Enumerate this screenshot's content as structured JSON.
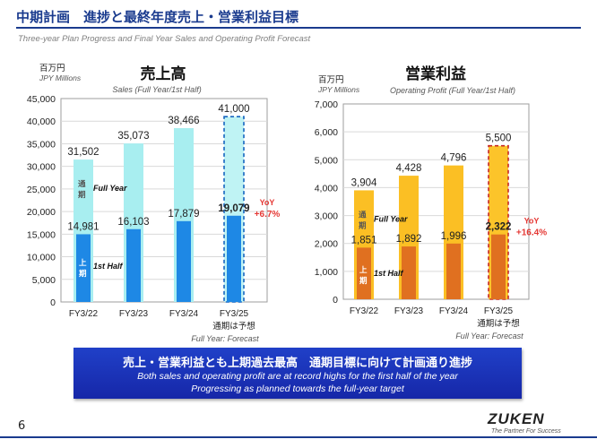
{
  "header": {
    "title": "中期計画　進捗と最終年度売上・営業利益目標",
    "subtitle": "Three-year Plan Progress and Final Year Sales and Operating Profit Forecast"
  },
  "chart_data": [
    {
      "type": "bar",
      "title": "売上高",
      "subtitle": "Sales (Full Year/1st Half)",
      "unit_label": "百万円",
      "unit_label_en": "JPY Millions",
      "categories": [
        "FY3/22",
        "FY3/23",
        "FY3/24",
        "FY3/25"
      ],
      "category_note": "通期は予想",
      "category_note_en": "Full Year: Forecast",
      "ylim": [
        0,
        45000
      ],
      "yticks": [
        "0",
        "5,000",
        "10,000",
        "15,000",
        "20,000",
        "25,000",
        "30,000",
        "35,000",
        "40,000",
        "45,000"
      ],
      "series": [
        {
          "name": "Full Year",
          "name_jp": "通期",
          "values": [
            31502,
            35073,
            38466,
            41000
          ],
          "labels": [
            "31,502",
            "35,073",
            "38,466",
            "41,000"
          ]
        },
        {
          "name": "1st Half",
          "name_jp": "上期",
          "values": [
            14981,
            16103,
            17879,
            19079
          ],
          "labels": [
            "14,981",
            "16,103",
            "17,879",
            "19,079"
          ]
        }
      ],
      "forecast_index": 3,
      "yoy_label": "YoY",
      "yoy_value": "+6.7%",
      "colors": {
        "full": "#a8eef0",
        "half": "#1e88e5",
        "forecast_outline": "#1565c0"
      }
    },
    {
      "type": "bar",
      "title": "営業利益",
      "subtitle": "Operating Profit (Full Year/1st Half)",
      "unit_label": "百万円",
      "unit_label_en": "JPY Millions",
      "categories": [
        "FY3/22",
        "FY3/23",
        "FY3/24",
        "FY3/25"
      ],
      "category_note": "通期は予想",
      "category_note_en": "Full Year: Forecast",
      "ylim": [
        0,
        7000
      ],
      "yticks": [
        "0",
        "1,000",
        "2,000",
        "3,000",
        "4,000",
        "5,000",
        "6,000",
        "7,000"
      ],
      "series": [
        {
          "name": "Full Year",
          "name_jp": "通期",
          "values": [
            3904,
            4428,
            4796,
            5500
          ],
          "labels": [
            "3,904",
            "4,428",
            "4,796",
            "5,500"
          ]
        },
        {
          "name": "1st Half",
          "name_jp": "上期",
          "values": [
            1851,
            1892,
            1996,
            2322
          ],
          "labels": [
            "1,851",
            "1,892",
            "1,996",
            "2,322"
          ]
        }
      ],
      "forecast_index": 3,
      "yoy_label": "YoY",
      "yoy_value": "+16.4%",
      "colors": {
        "full": "#fbbf24",
        "half": "#e07020",
        "forecast_outline": "#c62828"
      }
    }
  ],
  "banner": {
    "main": "売上・営業利益とも上期過去最高　通期目標に向けて計画通り進捗",
    "sub1": "Both sales and operating profit are at record highs for the first half of the year",
    "sub2": "Progressing as planned towards the full-year target"
  },
  "footer": {
    "page_number": "6",
    "logo": "ZUKEN",
    "tagline": "The Partner For Success"
  },
  "colors": {
    "brand": "#1a3b8e",
    "banner": "#1f35b8",
    "yoy": "#e53935"
  }
}
